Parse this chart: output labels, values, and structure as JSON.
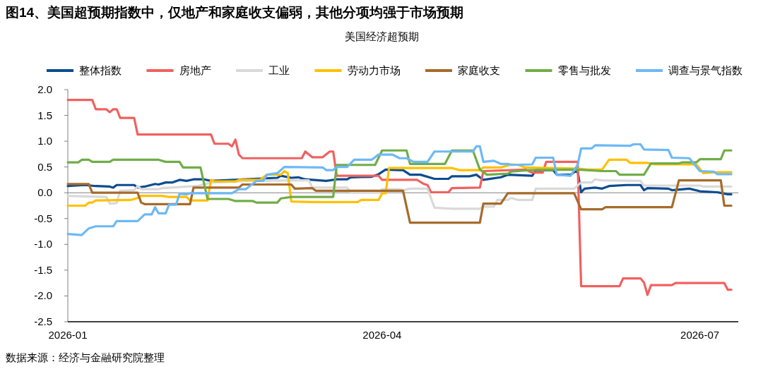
{
  "chart_data": {
    "type": "line",
    "title": "图14、美国超预期指数中，仅地产和家庭收支偏弱，其他分项均强于市场预期",
    "subtitle": "美国经济超预期",
    "annotations": [
      "数据来源：经济与金融研究院整理"
    ],
    "xlim": [
      "2026-01-01",
      "2026-07-12"
    ],
    "xticks": [
      "2026-01",
      "2026-04",
      "2026-07"
    ],
    "ylim": [
      -2.5,
      2.0
    ],
    "yticks": [
      {
        "value": 2,
        "label": "2.0"
      },
      {
        "value": 1.5,
        "label": "1.5"
      },
      {
        "value": 1,
        "label": "1.0"
      },
      {
        "value": 0.5,
        "label": "0.5"
      },
      {
        "value": 0,
        "label": "0.0"
      },
      {
        "value": -0.5,
        "label": "-0.5"
      },
      {
        "value": -1,
        "label": "-1.0"
      },
      {
        "value": -1.5,
        "label": "-1.5"
      },
      {
        "value": -2,
        "label": "-2.0"
      },
      {
        "value": -2.5,
        "label": "-2.5"
      }
    ],
    "grid": false,
    "legend": "top",
    "marker": "none",
    "line_style": "solid",
    "ref_lines": [
      {
        "axis": "y",
        "value": 0,
        "color": "#808080"
      }
    ],
    "series": [
      {
        "name": "整体指数",
        "color": "#0b4c8f",
        "x": [
          "2026-01-01",
          "2026-01-06",
          "2026-01-09",
          "2026-01-13",
          "2026-01-14",
          "2026-01-15",
          "2026-01-20",
          "2026-01-21",
          "2026-01-23",
          "2026-01-26",
          "2026-01-27",
          "2026-01-29",
          "2026-01-31",
          "2026-02-02",
          "2026-02-04",
          "2026-02-06",
          "2026-02-09",
          "2026-02-11",
          "2026-03-02",
          "2026-03-03",
          "2026-03-06",
          "2026-03-08",
          "2026-03-10",
          "2026-03-14",
          "2026-03-16",
          "2026-03-19",
          "2026-03-22",
          "2026-03-23",
          "2026-03-29",
          "2026-03-31",
          "2026-04-02",
          "2026-04-06",
          "2026-04-07",
          "2026-04-09",
          "2026-04-12",
          "2026-04-16",
          "2026-04-20",
          "2026-04-21",
          "2026-04-26",
          "2026-04-28",
          "2026-04-30",
          "2026-05-05",
          "2026-05-07",
          "2026-05-14",
          "2026-05-15",
          "2026-05-20",
          "2026-05-21",
          "2026-05-25",
          "2026-05-26",
          "2026-05-27",
          "2026-05-28",
          "2026-05-29",
          "2026-06-01",
          "2026-06-03",
          "2026-06-05",
          "2026-06-10",
          "2026-06-14",
          "2026-06-15",
          "2026-06-16",
          "2026-06-22",
          "2026-06-23",
          "2026-06-28",
          "2026-07-01",
          "2026-07-06",
          "2026-07-09",
          "2026-07-10"
        ],
        "values": [
          0.13,
          0.15,
          0.13,
          0.12,
          0.1,
          0.15,
          0.15,
          0.1,
          0.12,
          0.17,
          0.16,
          0.2,
          0.2,
          0.25,
          0.23,
          0.26,
          0.26,
          0.23,
          0.29,
          0.33,
          0.29,
          0.3,
          0.26,
          0.24,
          0.23,
          0.26,
          0.26,
          0.3,
          0.31,
          0.36,
          0.45,
          0.44,
          0.44,
          0.35,
          0.35,
          0.27,
          0.27,
          0.32,
          0.32,
          0.35,
          0.25,
          0.3,
          0.35,
          0.33,
          0.44,
          0.44,
          0.35,
          0.35,
          0.4,
          0.42,
          0.01,
          0.08,
          0.1,
          0.08,
          0.13,
          0.15,
          0.15,
          0.05,
          0.09,
          0.08,
          0.05,
          0.08,
          0.03,
          0.01,
          -0.03,
          -0.03
        ]
      },
      {
        "name": "房地产",
        "color": "#f0615f",
        "x": [
          "2026-01-01",
          "2026-01-08",
          "2026-01-09",
          "2026-01-12",
          "2026-01-13",
          "2026-01-14",
          "2026-01-15",
          "2026-01-16",
          "2026-01-20",
          "2026-01-21",
          "2026-02-11",
          "2026-02-12",
          "2026-02-16",
          "2026-02-17",
          "2026-02-18",
          "2026-02-19",
          "2026-02-20",
          "2026-03-09",
          "2026-03-10",
          "2026-03-12",
          "2026-03-15",
          "2026-03-17",
          "2026-03-18",
          "2026-03-19",
          "2026-03-31",
          "2026-04-01",
          "2026-04-11",
          "2026-04-13",
          "2026-04-14",
          "2026-04-15",
          "2026-04-20",
          "2026-04-21",
          "2026-04-29",
          "2026-04-30",
          "2026-05-12",
          "2026-05-14",
          "2026-05-17",
          "2026-05-18",
          "2026-05-27",
          "2026-05-28",
          "2026-06-08",
          "2026-06-09",
          "2026-06-14",
          "2026-06-15",
          "2026-06-16",
          "2026-06-17",
          "2026-06-23",
          "2026-06-24",
          "2026-07-08",
          "2026-07-09",
          "2026-07-10"
        ],
        "values": [
          1.8,
          1.8,
          1.62,
          1.62,
          1.56,
          1.62,
          1.62,
          1.45,
          1.45,
          1.13,
          1.13,
          0.95,
          0.95,
          0.9,
          1.03,
          0.74,
          0.67,
          0.67,
          0.8,
          0.69,
          0.69,
          0.8,
          0.8,
          0.33,
          0.33,
          0.25,
          0.25,
          0.17,
          0.15,
          0.01,
          0.01,
          0.09,
          0.1,
          0.42,
          0.45,
          0.39,
          0.39,
          0.6,
          0.6,
          -1.81,
          -1.81,
          -1.66,
          -1.66,
          -1.74,
          -1.98,
          -1.79,
          -1.79,
          -1.75,
          -1.75,
          -1.88,
          -1.88
        ]
      },
      {
        "name": "工业",
        "color": "#d9d9d9",
        "x": [
          "2026-01-01",
          "2026-01-12",
          "2026-01-13",
          "2026-01-15",
          "2026-01-16",
          "2026-01-20",
          "2026-01-21",
          "2026-01-22",
          "2026-01-27",
          "2026-01-28",
          "2026-02-07",
          "2026-02-11",
          "2026-02-23",
          "2026-03-08",
          "2026-03-11",
          "2026-03-12",
          "2026-03-22",
          "2026-03-23",
          "2026-03-31",
          "2026-04-01",
          "2026-04-06",
          "2026-04-07",
          "2026-04-09",
          "2026-04-14",
          "2026-04-16",
          "2026-04-21",
          "2026-04-29",
          "2026-04-30",
          "2026-05-03",
          "2026-05-04",
          "2026-05-07",
          "2026-05-08",
          "2026-05-10",
          "2026-05-14",
          "2026-05-15",
          "2026-05-26",
          "2026-05-28",
          "2026-05-31",
          "2026-06-01",
          "2026-06-03",
          "2026-06-14",
          "2026-06-15",
          "2026-07-01",
          "2026-07-02",
          "2026-07-10"
        ],
        "values": [
          -0.06,
          -0.08,
          -0.21,
          -0.2,
          0.04,
          0.05,
          0.13,
          0.07,
          0.07,
          0.09,
          0.13,
          0.2,
          0.23,
          0.24,
          0.24,
          0.1,
          0.1,
          0,
          0,
          0.07,
          0.07,
          0.05,
          0.08,
          0.08,
          -0.29,
          -0.31,
          -0.31,
          -0.27,
          -0.27,
          -0.14,
          -0.14,
          -0.1,
          -0.14,
          -0.14,
          0.08,
          0.08,
          0.2,
          0.2,
          0.26,
          0.24,
          0.23,
          0.14,
          0.14,
          0.12,
          0.12
        ]
      },
      {
        "name": "劳动力市场",
        "color": "#ffc000",
        "x": [
          "2026-01-01",
          "2026-01-06",
          "2026-01-07",
          "2026-01-08",
          "2026-01-09",
          "2026-01-19",
          "2026-01-21",
          "2026-01-22",
          "2026-01-28",
          "2026-01-30",
          "2026-02-04",
          "2026-02-05",
          "2026-02-10",
          "2026-02-11",
          "2026-02-12",
          "2026-02-18",
          "2026-02-19",
          "2026-02-25",
          "2026-02-27",
          "2026-03-03",
          "2026-03-04",
          "2026-03-05",
          "2026-03-06",
          "2026-03-12",
          "2026-03-25",
          "2026-03-26",
          "2026-03-31",
          "2026-04-01",
          "2026-04-02",
          "2026-04-03",
          "2026-04-15",
          "2026-04-21",
          "2026-04-23",
          "2026-04-29",
          "2026-04-30",
          "2026-05-05",
          "2026-05-06",
          "2026-05-08",
          "2026-05-10",
          "2026-05-12",
          "2026-05-26",
          "2026-05-30",
          "2026-06-03",
          "2026-06-05",
          "2026-06-10",
          "2026-06-11",
          "2026-06-16",
          "2026-06-18",
          "2026-06-30",
          "2026-07-02",
          "2026-07-06",
          "2026-07-10"
        ],
        "values": [
          -0.25,
          -0.25,
          -0.19,
          -0.19,
          -0.15,
          -0.14,
          -0.1,
          -0.06,
          -0.06,
          -0.08,
          -0.08,
          -0.15,
          -0.15,
          0.25,
          0.22,
          0.22,
          0.25,
          0.25,
          0.35,
          0.35,
          0.42,
          0.38,
          -0.17,
          -0.18,
          -0.18,
          -0.14,
          -0.14,
          -0.01,
          -0.01,
          0.48,
          0.48,
          0.48,
          0.44,
          0.44,
          0.49,
          0.49,
          0.51,
          0.55,
          0.54,
          0.49,
          0.47,
          0.45,
          0.45,
          0.64,
          0.64,
          0.58,
          0.58,
          0.55,
          0.55,
          0.38,
          0.4,
          0.4
        ]
      },
      {
        "name": "家庭收支",
        "color": "#a66b2b",
        "x": [
          "2026-01-01",
          "2026-01-07",
          "2026-01-08",
          "2026-01-21",
          "2026-01-22",
          "2026-01-23",
          "2026-02-05",
          "2026-02-06",
          "2026-02-19",
          "2026-02-20",
          "2026-03-06",
          "2026-03-07",
          "2026-03-12",
          "2026-03-13",
          "2026-04-07",
          "2026-04-09",
          "2026-04-29",
          "2026-04-30",
          "2026-05-05",
          "2026-05-07",
          "2026-05-26",
          "2026-05-28",
          "2026-06-03",
          "2026-06-04",
          "2026-06-23",
          "2026-06-25",
          "2026-07-07",
          "2026-07-08",
          "2026-07-10"
        ],
        "values": [
          0.17,
          0.17,
          0,
          0,
          -0.19,
          -0.22,
          -0.22,
          0.1,
          0.1,
          0.16,
          0.16,
          0.08,
          0.09,
          0.04,
          0.04,
          -0.58,
          -0.58,
          -0.21,
          -0.21,
          -0.01,
          -0.01,
          -0.32,
          -0.32,
          -0.28,
          -0.28,
          0.24,
          0.24,
          -0.25,
          -0.25
        ]
      },
      {
        "name": "零售与批发",
        "color": "#70ad47",
        "x": [
          "2026-01-01",
          "2026-01-04",
          "2026-01-05",
          "2026-01-07",
          "2026-01-08",
          "2026-01-13",
          "2026-01-14",
          "2026-01-27",
          "2026-01-29",
          "2026-02-02",
          "2026-02-03",
          "2026-02-08",
          "2026-02-10",
          "2026-02-16",
          "2026-02-18",
          "2026-02-23",
          "2026-02-24",
          "2026-03-02",
          "2026-03-03",
          "2026-03-06",
          "2026-03-18",
          "2026-03-19",
          "2026-03-30",
          "2026-04-01",
          "2026-04-08",
          "2026-04-09",
          "2026-04-19",
          "2026-04-21",
          "2026-04-27",
          "2026-04-29",
          "2026-05-01",
          "2026-05-07",
          "2026-05-08",
          "2026-05-13",
          "2026-05-27",
          "2026-06-03",
          "2026-06-07",
          "2026-06-08",
          "2026-06-15",
          "2026-06-17",
          "2026-06-25",
          "2026-06-26",
          "2026-06-30",
          "2026-07-01",
          "2026-07-07",
          "2026-07-08",
          "2026-07-10"
        ],
        "values": [
          0.59,
          0.59,
          0.64,
          0.64,
          0.6,
          0.6,
          0.64,
          0.64,
          0.6,
          0.6,
          0.49,
          0.49,
          -0.12,
          -0.12,
          -0.16,
          -0.16,
          -0.19,
          -0.19,
          -0.11,
          -0.08,
          -0.08,
          0.54,
          0.54,
          0.82,
          0.82,
          0.56,
          0.56,
          0.82,
          0.82,
          0.45,
          0.35,
          0.37,
          0.41,
          0.44,
          0.45,
          0.42,
          0.42,
          0.35,
          0.35,
          0.57,
          0.57,
          0.59,
          0.59,
          0.65,
          0.65,
          0.82,
          0.82
        ]
      },
      {
        "name": "调查与景气指数",
        "color": "#6db9f5",
        "x": [
          "2026-01-01",
          "2026-01-05",
          "2026-01-07",
          "2026-01-09",
          "2026-01-14",
          "2026-01-15",
          "2026-01-21",
          "2026-01-23",
          "2026-01-25",
          "2026-01-26",
          "2026-01-27",
          "2026-01-29",
          "2026-01-30",
          "2026-02-01",
          "2026-02-02",
          "2026-02-04",
          "2026-02-05",
          "2026-02-17",
          "2026-02-19",
          "2026-02-21",
          "2026-02-24",
          "2026-02-26",
          "2026-02-27",
          "2026-03-02",
          "2026-03-04",
          "2026-03-15",
          "2026-03-16",
          "2026-03-18",
          "2026-03-19",
          "2026-03-22",
          "2026-03-24",
          "2026-03-29",
          "2026-03-31",
          "2026-04-04",
          "2026-04-06",
          "2026-04-08",
          "2026-04-10",
          "2026-04-14",
          "2026-04-16",
          "2026-04-27",
          "2026-04-28",
          "2026-04-29",
          "2026-04-30",
          "2026-05-03",
          "2026-05-05",
          "2026-05-07",
          "2026-05-08",
          "2026-05-14",
          "2026-05-15",
          "2026-05-20",
          "2026-05-21",
          "2026-05-25",
          "2026-05-27",
          "2026-05-28",
          "2026-05-31",
          "2026-06-01",
          "2026-06-11",
          "2026-06-12",
          "2026-06-14",
          "2026-06-15",
          "2026-06-22",
          "2026-06-23",
          "2026-06-28",
          "2026-07-01",
          "2026-07-05",
          "2026-07-06",
          "2026-07-10"
        ],
        "values": [
          -0.8,
          -0.82,
          -0.69,
          -0.65,
          -0.65,
          -0.55,
          -0.55,
          -0.42,
          -0.42,
          -0.28,
          -0.4,
          -0.4,
          -0.23,
          -0.23,
          -0.02,
          -0.03,
          -0.01,
          -0.01,
          0.07,
          0.07,
          0.23,
          0.23,
          0.35,
          0.38,
          0.5,
          0.49,
          0.44,
          0.44,
          0.5,
          0.5,
          0.64,
          0.64,
          0.74,
          0.74,
          0.67,
          0.67,
          0.6,
          0.6,
          0.8,
          0.8,
          0.9,
          0.9,
          0.6,
          0.62,
          0.56,
          0.56,
          0.54,
          0.55,
          0.68,
          0.68,
          0.35,
          0.33,
          0.54,
          0.86,
          0.86,
          0.92,
          0.91,
          0.94,
          0.94,
          0.84,
          0.83,
          0.68,
          0.67,
          0.42,
          0.41,
          0.36,
          0.36
        ]
      }
    ]
  }
}
